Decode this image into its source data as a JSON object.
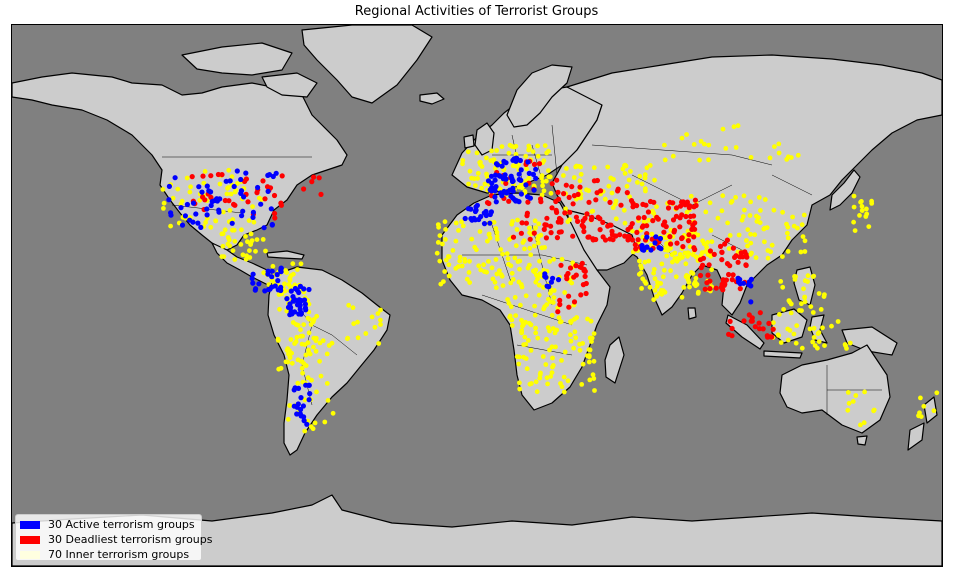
{
  "title": "Regional Activities of Terrorist Groups",
  "colors": {
    "ocean": "#808080",
    "land": "#cccccc",
    "coast": "#000000",
    "active": "#0000ff",
    "deadliest": "#ff0000",
    "inner": "#ffff00",
    "inner_legend": "#ffffe0"
  },
  "legend": {
    "placement": "lower-left",
    "items": [
      {
        "label": "30 Active terrorism groups",
        "color": "#0000ff"
      },
      {
        "label": "30 Deadliest terrorism groups",
        "color": "#ff0000"
      },
      {
        "label": "70 Inner terrorism groups",
        "color": "#ffffe0"
      }
    ]
  },
  "map": {
    "projection": "mercator",
    "lon_range": [
      -180,
      180
    ],
    "lat_range": [
      -85,
      85
    ]
  }
}
